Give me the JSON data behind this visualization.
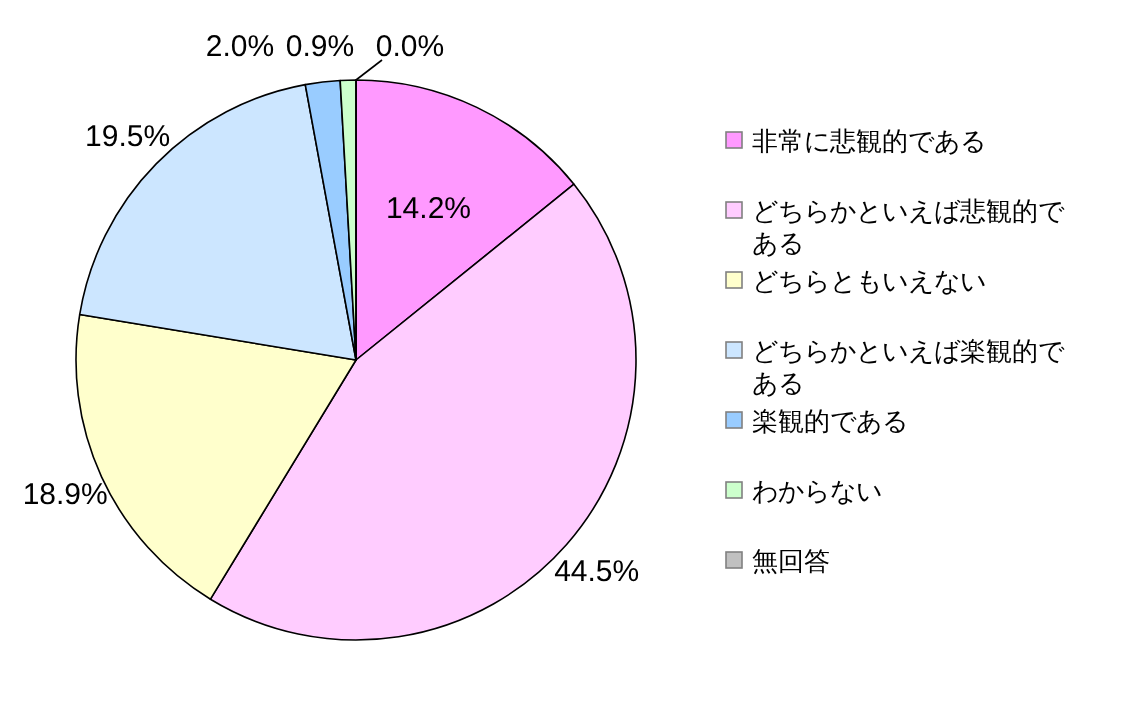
{
  "chart_data": {
    "type": "pie",
    "categories": [
      "非常に悲観的である",
      "どちらかといえば悲観的である",
      "どちらともいえない",
      "どちらかといえば楽観的である",
      "楽観的である",
      "わからない",
      "無回答"
    ],
    "values": [
      14.2,
      44.5,
      18.9,
      19.5,
      2.0,
      0.9,
      0.0
    ],
    "value_labels": [
      "14.2%",
      "44.5%",
      "18.9%",
      "19.5%",
      "2.0%",
      "0.9%",
      "0.0%"
    ],
    "colors": [
      "#ff99ff",
      "#ffccff",
      "#ffffcc",
      "#cce6ff",
      "#99ccff",
      "#ccffcc",
      "#c0c0c0"
    ],
    "legend": "right"
  }
}
